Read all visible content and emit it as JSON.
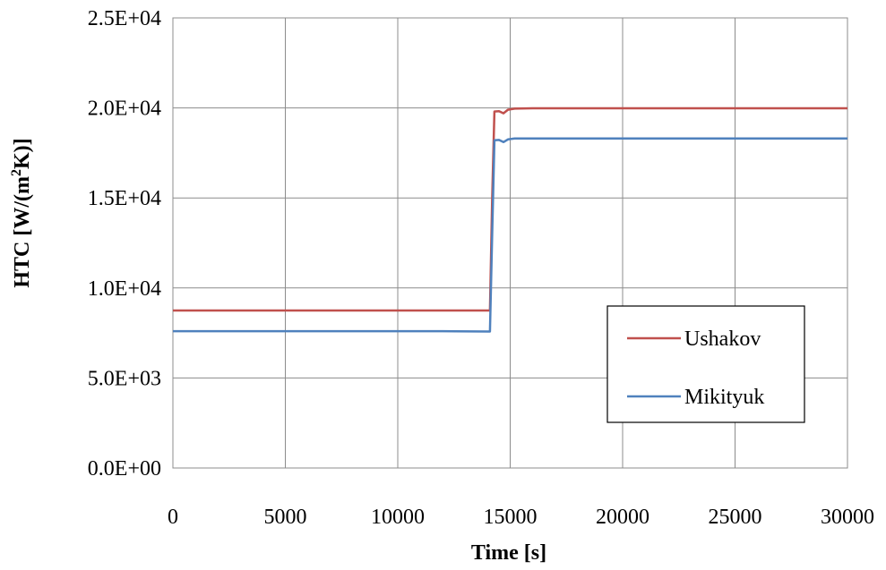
{
  "chart_data": {
    "type": "line",
    "xlabel": "Time [s]",
    "ylabel_main": "HTC [W/(m",
    "ylabel_sup": "2",
    "ylabel_end": "K)]",
    "xlim": [
      0,
      30000
    ],
    "ylim": [
      0,
      25000
    ],
    "x_ticks": [
      0,
      5000,
      10000,
      15000,
      20000,
      25000,
      30000
    ],
    "x_tick_labels": [
      "0",
      "5000",
      "10000",
      "15000",
      "20000",
      "25000",
      "30000"
    ],
    "y_ticks": [
      0,
      5000,
      10000,
      15000,
      20000,
      25000
    ],
    "y_tick_labels": [
      "0.0E+00",
      "5.0E+03",
      "1.0E+04",
      "1.5E+04",
      "2.0E+04",
      "2.5E+04"
    ],
    "grid": true,
    "legend_position": "lower-right",
    "series": [
      {
        "name": "Ushakov",
        "color": "#c0504d",
        "x": [
          0,
          14100,
          14200,
          14300,
          14500,
          14700,
          14900,
          15200,
          16000,
          30000
        ],
        "y": [
          8750,
          8750,
          15000,
          19800,
          19820,
          19700,
          19900,
          19960,
          19980,
          19980
        ]
      },
      {
        "name": "Mikityuk",
        "color": "#4f81bd",
        "x": [
          0,
          12000,
          14100,
          14200,
          14300,
          14500,
          14700,
          14900,
          15200,
          16000,
          30000
        ],
        "y": [
          7600,
          7600,
          7580,
          13000,
          18200,
          18220,
          18100,
          18250,
          18300,
          18300,
          18300
        ]
      }
    ]
  }
}
